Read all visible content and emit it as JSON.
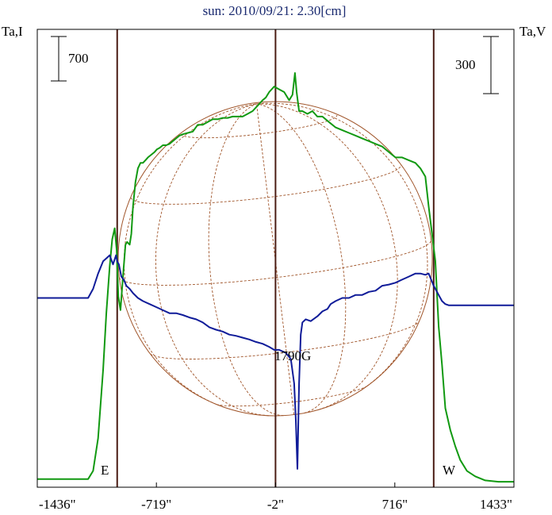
{
  "chart_data": {
    "type": "line",
    "title": "sun: 2010/09/21: 2.30[cm]",
    "ylabel_left": "Ta,I",
    "ylabel_right": "Ta,V",
    "scale_left": "700",
    "scale_right": "300",
    "x_tick_labels": [
      "-1436\"",
      "-719\"",
      "-2\"",
      "716\"",
      "1433\""
    ],
    "x_ticks": [
      -1436,
      -719,
      -2,
      716,
      1433
    ],
    "xlim": [
      -1436,
      1433
    ],
    "limb_labels": {
      "east": "E",
      "west": "W"
    },
    "limb_positions": [
      -955,
      950
    ],
    "annotation": "1790G",
    "grid": false,
    "colors": {
      "intensity": "#119911",
      "polarization": "#101c99",
      "disk": "#a0552a",
      "limb_lines": "#4a1c14",
      "frame": "#000000"
    },
    "series": [
      {
        "name": "I",
        "x": [
          -1436,
          -1130,
          -1100,
          -1070,
          -1040,
          -1020,
          -1000,
          -985,
          -970,
          -958,
          -948,
          -935,
          -918,
          -905,
          -895,
          -880,
          -870,
          -860,
          -845,
          -830,
          -815,
          -800,
          -785,
          -770,
          -750,
          -730,
          -715,
          -700,
          -680,
          -660,
          -640,
          -620,
          -600,
          -580,
          -560,
          -530,
          -500,
          -470,
          -440,
          -410,
          -380,
          -350,
          -320,
          -290,
          -260,
          -230,
          -200,
          -170,
          -140,
          -110,
          -80,
          -60,
          -40,
          -10,
          20,
          50,
          80,
          100,
          115,
          125,
          140,
          160,
          190,
          220,
          250,
          280,
          320,
          360,
          400,
          440,
          480,
          520,
          560,
          600,
          640,
          680,
          720,
          760,
          800,
          840,
          870,
          900,
          920,
          940,
          960,
          980,
          1000,
          1020,
          1050,
          1080,
          1110,
          1150,
          1200,
          1260,
          1340,
          1433
        ],
        "y": [
          0,
          0,
          30,
          150,
          400,
          610,
          780,
          880,
          920,
          840,
          670,
          620,
          760,
          860,
          870,
          860,
          900,
          1000,
          1090,
          1140,
          1160,
          1160,
          1170,
          1180,
          1190,
          1200,
          1210,
          1215,
          1225,
          1225,
          1230,
          1240,
          1250,
          1260,
          1265,
          1270,
          1275,
          1300,
          1300,
          1310,
          1320,
          1320,
          1325,
          1325,
          1330,
          1330,
          1330,
          1340,
          1350,
          1370,
          1390,
          1400,
          1420,
          1440,
          1430,
          1420,
          1390,
          1410,
          1490,
          1420,
          1350,
          1350,
          1340,
          1350,
          1330,
          1330,
          1310,
          1290,
          1280,
          1270,
          1260,
          1250,
          1240,
          1230,
          1220,
          1200,
          1180,
          1180,
          1170,
          1160,
          1140,
          1110,
          1000,
          900,
          800,
          560,
          420,
          260,
          180,
          120,
          70,
          30,
          10,
          -5,
          -10,
          -10
        ]
      },
      {
        "name": "V",
        "x": [
          -1436,
          -1130,
          -1100,
          -1070,
          -1040,
          -1000,
          -980,
          -962,
          -955,
          -945,
          -930,
          -915,
          -900,
          -880,
          -860,
          -830,
          -800,
          -760,
          -720,
          -680,
          -640,
          -600,
          -560,
          -520,
          -480,
          -440,
          -400,
          -360,
          -320,
          -280,
          -240,
          -200,
          -160,
          -120,
          -80,
          -40,
          -10,
          20,
          60,
          90,
          110,
          120,
          130,
          140,
          150,
          160,
          180,
          210,
          250,
          280,
          310,
          330,
          360,
          400,
          440,
          480,
          520,
          560,
          600,
          640,
          680,
          720,
          760,
          800,
          840,
          870,
          900,
          920,
          950,
          980,
          1000,
          1020,
          1040,
          1060,
          1100,
          1200,
          1300,
          1433
        ],
        "y": [
          0,
          0,
          15,
          40,
          60,
          70,
          55,
          70,
          60,
          55,
          35,
          30,
          20,
          15,
          8,
          0,
          -5,
          -10,
          -15,
          -20,
          -25,
          -25,
          -28,
          -32,
          -35,
          -40,
          -48,
          -52,
          -55,
          -60,
          -62,
          -65,
          -68,
          -72,
          -75,
          -80,
          -85,
          -85,
          -90,
          -100,
          -140,
          -200,
          -280,
          -140,
          -60,
          -40,
          -35,
          -38,
          -30,
          -22,
          -18,
          -10,
          -5,
          0,
          0,
          5,
          5,
          10,
          12,
          20,
          22,
          25,
          30,
          35,
          40,
          40,
          38,
          40,
          20,
          5,
          -5,
          -10,
          -12,
          -12,
          -12,
          -12,
          -12,
          -12
        ]
      }
    ],
    "y_ranges": {
      "I": [
        -30,
        1650
      ],
      "V": [
        -310,
        440
      ]
    }
  }
}
